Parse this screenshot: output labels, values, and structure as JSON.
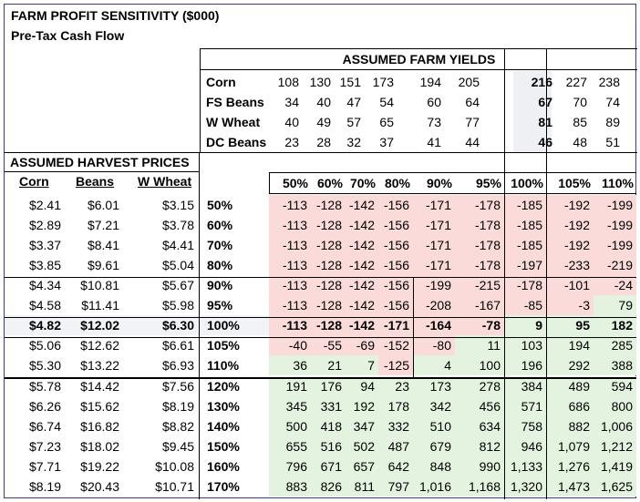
{
  "title": "FARM PROFIT SENSITIVITY ($000)",
  "subtitle": "Pre-Tax Cash Flow",
  "yields_header": "ASSUMED FARM YIELDS",
  "yields": [
    {
      "crop": "Corn",
      "values": [
        "108",
        "130",
        "151",
        "173",
        "194",
        "205",
        "216",
        "227",
        "238"
      ]
    },
    {
      "crop": "FS Beans",
      "values": [
        "34",
        "40",
        "47",
        "54",
        "60",
        "64",
        "67",
        "70",
        "74"
      ]
    },
    {
      "crop": "W Wheat",
      "values": [
        "40",
        "49",
        "57",
        "65",
        "73",
        "77",
        "81",
        "85",
        "89"
      ]
    },
    {
      "crop": "DC Beans",
      "values": [
        "23",
        "28",
        "32",
        "37",
        "41",
        "44",
        "46",
        "48",
        "51"
      ]
    }
  ],
  "prices_header": "ASSUMED HARVEST PRICES",
  "price_columns": [
    "Corn",
    "Beans",
    "W Wheat"
  ],
  "yield_pcts": [
    "50%",
    "60%",
    "70%",
    "80%",
    "90%",
    "95%",
    "100%",
    "105%",
    "110%"
  ],
  "rows": [
    {
      "corn": "$2.41",
      "beans": "$6.01",
      "wheat": "$3.15",
      "pct": "50%",
      "vals": [
        "-113",
        "-128",
        "-142",
        "-156",
        "-171",
        "-178",
        "-185",
        "-192",
        "-199"
      ],
      "colors": [
        "p",
        "p",
        "p",
        "p",
        "p",
        "p",
        "p",
        "p",
        "p"
      ]
    },
    {
      "corn": "$2.89",
      "beans": "$7.21",
      "wheat": "$3.78",
      "pct": "60%",
      "vals": [
        "-113",
        "-128",
        "-142",
        "-156",
        "-171",
        "-178",
        "-185",
        "-192",
        "-199"
      ],
      "colors": [
        "p",
        "p",
        "p",
        "p",
        "p",
        "p",
        "p",
        "p",
        "p"
      ]
    },
    {
      "corn": "$3.37",
      "beans": "$8.41",
      "wheat": "$4.41",
      "pct": "70%",
      "vals": [
        "-113",
        "-128",
        "-142",
        "-156",
        "-171",
        "-178",
        "-185",
        "-192",
        "-199"
      ],
      "colors": [
        "p",
        "p",
        "p",
        "p",
        "p",
        "p",
        "p",
        "p",
        "p"
      ]
    },
    {
      "corn": "$3.85",
      "beans": "$9.61",
      "wheat": "$5.04",
      "pct": "80%",
      "vals": [
        "-113",
        "-128",
        "-142",
        "-156",
        "-171",
        "-178",
        "-197",
        "-233",
        "-219"
      ],
      "colors": [
        "p",
        "p",
        "p",
        "p",
        "p",
        "p",
        "p",
        "p",
        "p"
      ]
    },
    {
      "corn": "$4.34",
      "beans": "$10.81",
      "wheat": "$5.67",
      "pct": "90%",
      "vals": [
        "-113",
        "-128",
        "-142",
        "-156",
        "-199",
        "-215",
        "-178",
        "-101",
        "-24"
      ],
      "colors": [
        "p",
        "p",
        "p",
        "p",
        "p",
        "p",
        "p",
        "p",
        "p"
      ]
    },
    {
      "corn": "$4.58",
      "beans": "$11.41",
      "wheat": "$5.98",
      "pct": "95%",
      "vals": [
        "-113",
        "-128",
        "-142",
        "-156",
        "-208",
        "-167",
        "-85",
        "-3",
        "79"
      ],
      "colors": [
        "p",
        "p",
        "p",
        "p",
        "p",
        "p",
        "p",
        "p",
        "g"
      ]
    },
    {
      "corn": "$4.82",
      "beans": "$12.02",
      "wheat": "$6.30",
      "pct": "100%",
      "vals": [
        "-113",
        "-128",
        "-142",
        "-171",
        "-164",
        "-78",
        "9",
        "95",
        "182"
      ],
      "colors": [
        "p",
        "p",
        "p",
        "p",
        "p",
        "p",
        "g",
        "g",
        "g"
      ],
      "bold": true
    },
    {
      "corn": "$5.06",
      "beans": "$12.62",
      "wheat": "$6.61",
      "pct": "105%",
      "vals": [
        "-40",
        "-55",
        "-69",
        "-152",
        "-80",
        "11",
        "103",
        "194",
        "285"
      ],
      "colors": [
        "p",
        "p",
        "p",
        "p",
        "p",
        "g",
        "g",
        "g",
        "g"
      ]
    },
    {
      "corn": "$5.30",
      "beans": "$13.22",
      "wheat": "$6.93",
      "pct": "110%",
      "vals": [
        "36",
        "21",
        "7",
        "-125",
        "4",
        "100",
        "196",
        "292",
        "388"
      ],
      "colors": [
        "g",
        "g",
        "g",
        "p",
        "g",
        "g",
        "g",
        "g",
        "g"
      ]
    },
    {
      "corn": "$5.78",
      "beans": "$14.42",
      "wheat": "$7.56",
      "pct": "120%",
      "vals": [
        "191",
        "176",
        "94",
        "23",
        "173",
        "278",
        "384",
        "489",
        "594"
      ],
      "colors": [
        "g",
        "g",
        "g",
        "g",
        "g",
        "g",
        "g",
        "g",
        "g"
      ]
    },
    {
      "corn": "$6.26",
      "beans": "$15.62",
      "wheat": "$8.19",
      "pct": "130%",
      "vals": [
        "345",
        "331",
        "192",
        "178",
        "342",
        "456",
        "571",
        "686",
        "800"
      ],
      "colors": [
        "g",
        "g",
        "g",
        "g",
        "g",
        "g",
        "g",
        "g",
        "g"
      ]
    },
    {
      "corn": "$6.74",
      "beans": "$16.82",
      "wheat": "$8.82",
      "pct": "140%",
      "vals": [
        "500",
        "418",
        "347",
        "332",
        "510",
        "634",
        "758",
        "882",
        "1,006"
      ],
      "colors": [
        "g",
        "g",
        "g",
        "g",
        "g",
        "g",
        "g",
        "g",
        "g"
      ]
    },
    {
      "corn": "$7.23",
      "beans": "$18.02",
      "wheat": "$9.45",
      "pct": "150%",
      "vals": [
        "655",
        "516",
        "502",
        "487",
        "679",
        "812",
        "946",
        "1,079",
        "1,212"
      ],
      "colors": [
        "g",
        "g",
        "g",
        "g",
        "g",
        "g",
        "g",
        "g",
        "g"
      ]
    },
    {
      "corn": "$7.71",
      "beans": "$19.22",
      "wheat": "$10.08",
      "pct": "160%",
      "vals": [
        "796",
        "671",
        "657",
        "642",
        "848",
        "990",
        "1,133",
        "1,276",
        "1,419"
      ],
      "colors": [
        "g",
        "g",
        "g",
        "g",
        "g",
        "g",
        "g",
        "g",
        "g"
      ]
    },
    {
      "corn": "$8.19",
      "beans": "$20.43",
      "wheat": "$10.71",
      "pct": "170%",
      "vals": [
        "883",
        "826",
        "811",
        "797",
        "1,016",
        "1,168",
        "1,320",
        "1,473",
        "1,625"
      ],
      "colors": [
        "g",
        "g",
        "g",
        "g",
        "g",
        "g",
        "g",
        "g",
        "g"
      ]
    }
  ],
  "colors": {
    "negative_fill": "#fadbd9",
    "positive_fill": "#e3f3df",
    "frame": "#3a3a8a"
  }
}
